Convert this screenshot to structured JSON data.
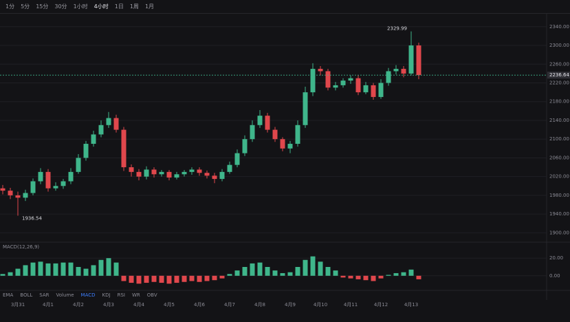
{
  "toolbar": {
    "items": [
      "1分",
      "5分",
      "15分",
      "30分",
      "1小时",
      "4小时",
      "1日",
      "1周",
      "1月"
    ],
    "active": 5
  },
  "indicator_tabs": {
    "items": [
      "EMA",
      "BOLL",
      "SAR",
      "Volume",
      "MACD",
      "KDJ",
      "RSI",
      "WR",
      "OBV"
    ],
    "active": 4
  },
  "chart_data": [
    {
      "type": "candlestick",
      "categories": [
        null,
        null,
        "3月31",
        null,
        null,
        null,
        "4月1",
        null,
        null,
        null,
        "4月2",
        null,
        null,
        null,
        "4月3",
        null,
        null,
        null,
        "4月4",
        null,
        null,
        null,
        "4月5",
        null,
        null,
        null,
        "4月6",
        null,
        null,
        null,
        "4月7",
        null,
        null,
        null,
        "4月8",
        null,
        null,
        null,
        "4月9",
        null,
        null,
        null,
        "4月10",
        null,
        null,
        null,
        "4月11",
        null,
        null,
        null,
        "4月12",
        null,
        null,
        null,
        "4月13",
        null
      ],
      "open": [
        1995,
        1990,
        1980,
        1975,
        1985,
        2010,
        2030,
        1995,
        2000,
        2010,
        2030,
        2060,
        2090,
        2110,
        2130,
        2145,
        2120,
        2040,
        2030,
        2020,
        2035,
        2025,
        2030,
        2018,
        2025,
        2030,
        2035,
        2028,
        2022,
        2015,
        2030,
        2045,
        2070,
        2100,
        2130,
        2150,
        2120,
        2100,
        2080,
        2090,
        2130,
        2200,
        2250,
        2245,
        2210,
        2215,
        2225,
        2230,
        2200,
        2215,
        2190,
        2220,
        2245,
        2250,
        2240,
        2300
      ],
      "high": [
        2002,
        1996,
        1988,
        1992,
        2016,
        2038,
        2036,
        2008,
        2015,
        2038,
        2068,
        2096,
        2118,
        2140,
        2158,
        2152,
        2126,
        2046,
        2036,
        2042,
        2040,
        2034,
        2034,
        2030,
        2034,
        2040,
        2040,
        2033,
        2028,
        2036,
        2052,
        2078,
        2108,
        2140,
        2162,
        2156,
        2126,
        2104,
        2096,
        2140,
        2212,
        2262,
        2256,
        2250,
        2222,
        2230,
        2236,
        2236,
        2222,
        2220,
        2228,
        2252,
        2258,
        2256,
        2329.99,
        2306
      ],
      "low": [
        1982,
        1972,
        1936.54,
        1968,
        1980,
        2004,
        1988,
        1990,
        1994,
        2004,
        2026,
        2054,
        2084,
        2104,
        2124,
        2114,
        2032,
        2020,
        2012,
        2014,
        2018,
        2020,
        2012,
        2014,
        2020,
        2024,
        2022,
        2016,
        2006,
        2010,
        2026,
        2040,
        2064,
        2094,
        2124,
        2114,
        2094,
        2074,
        2070,
        2084,
        2124,
        2192,
        2236,
        2204,
        2204,
        2210,
        2218,
        2194,
        2196,
        2184,
        2186,
        2214,
        2238,
        2232,
        2236,
        2228
      ],
      "close": [
        1990,
        1980,
        1975,
        1985,
        2010,
        2030,
        1995,
        2000,
        2010,
        2030,
        2060,
        2090,
        2110,
        2130,
        2145,
        2120,
        2040,
        2030,
        2020,
        2035,
        2025,
        2030,
        2018,
        2025,
        2030,
        2035,
        2028,
        2022,
        2015,
        2030,
        2045,
        2070,
        2100,
        2130,
        2150,
        2120,
        2100,
        2080,
        2090,
        2130,
        2200,
        2250,
        2245,
        2210,
        2215,
        2225,
        2230,
        2200,
        2215,
        2190,
        2220,
        2245,
        2250,
        2240,
        2300,
        2236.64
      ],
      "up_color": "#3fb68b",
      "down_color": "#e0474c",
      "ylim": [
        1880,
        2350
      ],
      "yticks": [
        {
          "value": 1900,
          "label": "1900.00"
        },
        {
          "value": 1940,
          "label": "1940.00"
        },
        {
          "value": 1980,
          "label": "1980.00"
        },
        {
          "value": 2020,
          "label": "2020.00"
        },
        {
          "value": 2060,
          "label": "2060.00"
        },
        {
          "value": 2100,
          "label": "2100.00"
        },
        {
          "value": 2140,
          "label": "2140.00"
        },
        {
          "value": 2180,
          "label": "2180.00"
        },
        {
          "value": 2220,
          "label": "2220.00"
        },
        {
          "value": 2260,
          "label": "2260.00"
        },
        {
          "value": 2300,
          "label": "2300.00"
        },
        {
          "value": 2340,
          "label": "2340.00"
        }
      ],
      "grid": true
    },
    {
      "type": "bar",
      "title": "MACD(12,26,9)",
      "values": [
        2,
        4,
        8,
        12,
        15,
        16,
        14,
        14,
        15,
        15,
        10,
        8,
        12,
        18,
        20,
        15,
        -6,
        -8,
        -9,
        -8,
        -7,
        -8,
        -9,
        -8,
        -7,
        -6,
        -7,
        -6,
        -5,
        -3,
        2,
        6,
        10,
        14,
        15,
        10,
        6,
        3,
        4,
        10,
        18,
        22,
        16,
        10,
        6,
        -2,
        -3,
        -4,
        -5,
        -6,
        -3,
        1,
        3,
        4,
        7,
        -4
      ],
      "up_color": "#3fb68b",
      "down_color": "#e0474c",
      "ylim": [
        -15,
        35
      ],
      "yticks": [
        {
          "value": 0,
          "label": "0.00"
        },
        {
          "value": 20,
          "label": "20.00"
        }
      ],
      "grid": true
    }
  ]
}
